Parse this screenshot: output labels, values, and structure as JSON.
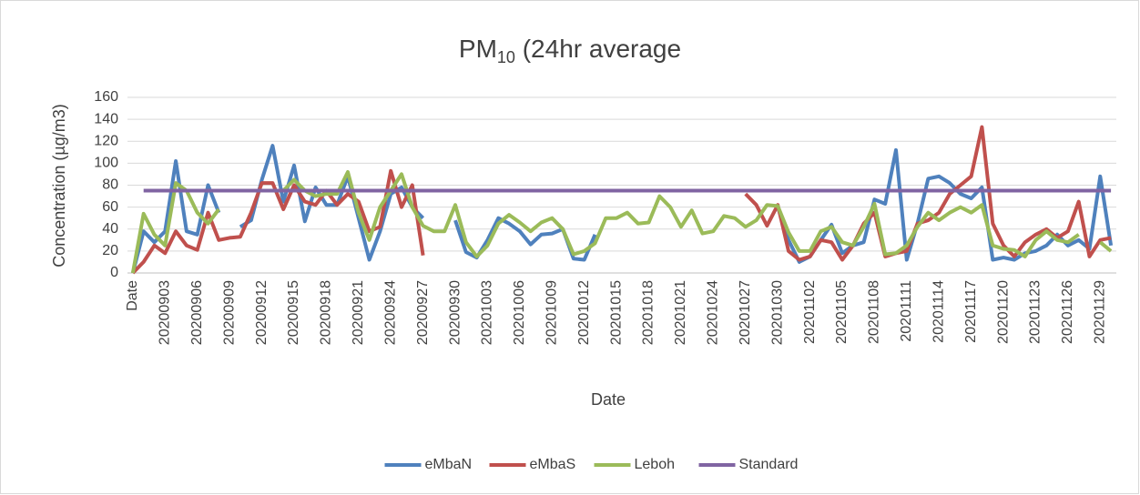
{
  "chart_data": {
    "type": "line",
    "title_parts": [
      "PM",
      "10",
      " (24hr average"
    ],
    "x_label": "Date",
    "y_label": "Concentration (µg/m3)",
    "categories": [
      "Date",
      null,
      null,
      "20200903",
      null,
      null,
      "20200906",
      null,
      null,
      "20200909",
      null,
      null,
      "20200912",
      null,
      null,
      "20200915",
      null,
      null,
      "20200918",
      null,
      null,
      "20200921",
      null,
      null,
      "20200924",
      null,
      null,
      "20200927",
      null,
      null,
      "20200930",
      null,
      null,
      "20201003",
      null,
      null,
      "20201006",
      null,
      null,
      "20201009",
      null,
      null,
      "20201012",
      null,
      null,
      "20201015",
      null,
      null,
      "20201018",
      null,
      null,
      "20201021",
      null,
      null,
      "20201024",
      null,
      null,
      "20201027",
      null,
      null,
      "20201030",
      null,
      null,
      "20201102",
      null,
      null,
      "20201105",
      null,
      null,
      "20201108",
      null,
      null,
      "20201111",
      null,
      null,
      "20201114",
      null,
      null,
      "20201117",
      null,
      null,
      "20201120",
      null,
      null,
      "20201123",
      null,
      null,
      "20201126",
      null,
      null,
      "20201129",
      null
    ],
    "series": [
      {
        "name": "eMbaN",
        "color": "#4f81bd",
        "values": [
          0,
          38,
          28,
          38,
          102,
          38,
          35,
          80,
          55,
          null,
          42,
          48,
          85,
          116,
          65,
          98,
          47,
          78,
          62,
          62,
          88,
          50,
          12,
          38,
          72,
          78,
          60,
          50,
          null,
          null,
          48,
          19,
          14,
          30,
          50,
          45,
          38,
          26,
          35,
          36,
          40,
          13,
          12,
          35,
          null,
          null,
          null,
          null,
          null,
          null,
          null,
          null,
          null,
          null,
          null,
          null,
          null,
          null,
          null,
          null,
          60,
          30,
          10,
          15,
          30,
          44,
          18,
          25,
          28,
          67,
          63,
          112,
          12,
          45,
          86,
          88,
          82,
          72,
          68,
          78,
          12,
          14,
          12,
          18,
          20,
          25,
          35,
          25,
          30,
          22,
          88,
          25
        ]
      },
      {
        "name": "eMbaS",
        "color": "#c0504d",
        "values": [
          0,
          10,
          25,
          18,
          38,
          25,
          21,
          55,
          30,
          32,
          33,
          55,
          82,
          82,
          58,
          80,
          65,
          62,
          75,
          62,
          72,
          65,
          38,
          42,
          93,
          60,
          80,
          16,
          null,
          null,
          null,
          null,
          null,
          null,
          null,
          null,
          null,
          null,
          null,
          null,
          null,
          null,
          null,
          null,
          null,
          null,
          null,
          null,
          null,
          null,
          null,
          null,
          null,
          null,
          null,
          null,
          null,
          72,
          62,
          43,
          62,
          20,
          12,
          15,
          30,
          28,
          12,
          25,
          45,
          55,
          15,
          18,
          20,
          45,
          48,
          55,
          72,
          80,
          88,
          133,
          45,
          25,
          15,
          28,
          35,
          40,
          32,
          38,
          65,
          15,
          30,
          32
        ]
      },
      {
        "name": "Leboh",
        "color": "#9bbb59",
        "values": [
          0,
          54,
          35,
          25,
          82,
          75,
          55,
          45,
          58,
          null,
          null,
          null,
          null,
          null,
          75,
          85,
          75,
          70,
          72,
          72,
          92,
          55,
          30,
          60,
          75,
          90,
          60,
          43,
          38,
          38,
          62,
          28,
          15,
          25,
          45,
          53,
          46,
          38,
          46,
          50,
          40,
          17,
          20,
          27,
          50,
          50,
          55,
          45,
          46,
          70,
          60,
          42,
          57,
          36,
          38,
          52,
          50,
          42,
          48,
          62,
          61,
          37,
          20,
          20,
          38,
          42,
          28,
          25,
          42,
          63,
          17,
          18,
          25,
          42,
          55,
          48,
          55,
          60,
          55,
          62,
          25,
          22,
          21,
          15,
          30,
          38,
          30,
          28,
          35,
          null,
          28,
          20
        ]
      },
      {
        "name": "Standard",
        "color": "#8064a2",
        "values": [
          null,
          75,
          75,
          75,
          75,
          75,
          75,
          75,
          75,
          75,
          75,
          75,
          75,
          75,
          75,
          75,
          75,
          75,
          75,
          75,
          75,
          75,
          75,
          75,
          75,
          75,
          75,
          75,
          75,
          75,
          75,
          75,
          75,
          75,
          75,
          75,
          75,
          75,
          75,
          75,
          75,
          75,
          75,
          75,
          75,
          75,
          75,
          75,
          75,
          75,
          75,
          75,
          75,
          75,
          75,
          75,
          75,
          75,
          75,
          75,
          75,
          75,
          75,
          75,
          75,
          75,
          75,
          75,
          75,
          75,
          75,
          75,
          75,
          75,
          75,
          75,
          75,
          75,
          75,
          75,
          75,
          75,
          75,
          75,
          75,
          75,
          75,
          75,
          75,
          75,
          75,
          75
        ]
      }
    ],
    "ylim": [
      0,
      160
    ],
    "yticks": [
      0,
      20,
      40,
      60,
      80,
      100,
      120,
      140,
      160
    ],
    "grid": true,
    "legend": "bottom"
  }
}
